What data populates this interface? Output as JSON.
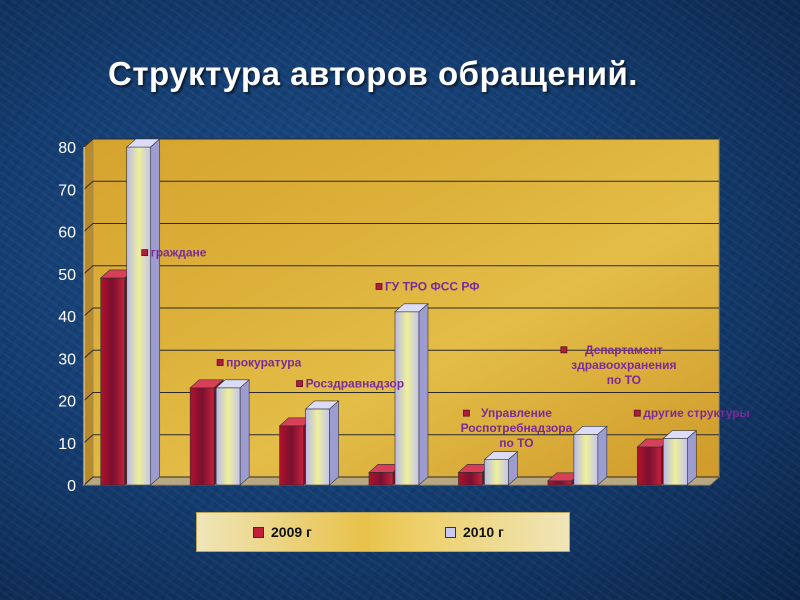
{
  "slide": {
    "title": "Структура авторов обращений."
  },
  "colors": {
    "series_2009": "#c0203a",
    "series_2010": "#c8c8f0",
    "plot_background": "#d9a832",
    "label_text": "#7a2a9a"
  },
  "chart_data": {
    "type": "bar",
    "categories": [
      "граждане",
      "прокуратура",
      "Росздравнадзор",
      "ГУ ТРО ФСС РФ",
      "Управление Роспотребнадзора по ТО",
      "Департамент здравоохранения по ТО",
      "другие структуры"
    ],
    "category_labels": [
      [
        "граждане"
      ],
      [
        "прокуратура"
      ],
      [
        "Росздравнадзор"
      ],
      [
        "ГУ ТРО ФСС РФ"
      ],
      [
        "Управление",
        "Роспотребнадзора",
        "по ТО"
      ],
      [
        "Департамент",
        "здравоохранения",
        "по ТО"
      ],
      [
        "другие структуры"
      ]
    ],
    "series": [
      {
        "name": "2009 г",
        "values": [
          49,
          23,
          14,
          3,
          3,
          1,
          9
        ]
      },
      {
        "name": "2010 г",
        "values": [
          80,
          23,
          18,
          41,
          6,
          12,
          11
        ]
      }
    ],
    "label_values": [
      55,
      29,
      24,
      47,
      17,
      32,
      17
    ],
    "ylim": [
      0,
      80
    ],
    "yticks": [
      0,
      10,
      20,
      30,
      40,
      50,
      60,
      70,
      80
    ],
    "grid": true,
    "legend": "bottom"
  }
}
